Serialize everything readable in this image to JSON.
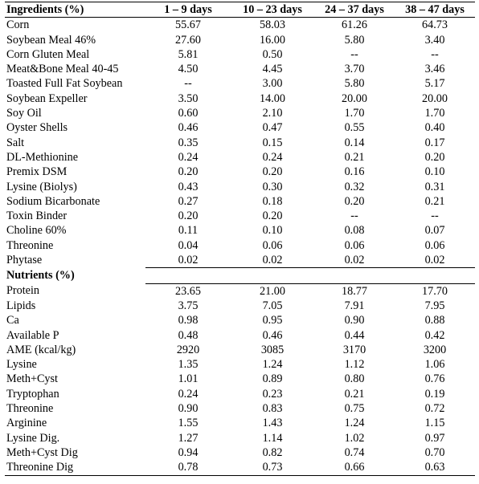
{
  "headers": [
    "Ingredients (%)",
    "1 – 9 days",
    "10 – 23 days",
    "24 – 37 days",
    "38 – 47 days"
  ],
  "ingredients": [
    [
      "Corn",
      "55.67",
      "58.03",
      "61.26",
      "64.73"
    ],
    [
      "Soybean Meal 46%",
      "27.60",
      "16.00",
      "5.80",
      "3.40"
    ],
    [
      "Corn Gluten Meal",
      "5.81",
      "0.50",
      "--",
      "--"
    ],
    [
      "Meat&Bone Meal 40-45",
      "4.50",
      "4.45",
      "3.70",
      "3.46"
    ],
    [
      "Toasted Full Fat Soybean",
      "--",
      "3.00",
      "5.80",
      "5.17"
    ],
    [
      "Soybean Expeller",
      "3.50",
      "14.00",
      "20.00",
      "20.00"
    ],
    [
      "Soy Oil",
      "0.60",
      "2.10",
      "1.70",
      "1.70"
    ],
    [
      "Oyster Shells",
      "0.46",
      "0.47",
      "0.55",
      "0.40"
    ],
    [
      "Salt",
      "0.35",
      "0.15",
      "0.14",
      "0.17"
    ],
    [
      "DL-Methionine",
      "0.24",
      "0.24",
      "0.21",
      "0.20"
    ],
    [
      "Premix DSM",
      "0.20",
      "0.20",
      "0.16",
      "0.10"
    ],
    [
      "Lysine (Biolys)",
      "0.43",
      "0.30",
      "0.32",
      "0.31"
    ],
    [
      "Sodium Bicarbonate",
      "0.27",
      "0.18",
      "0.20",
      "0.21"
    ],
    [
      "Toxin Binder",
      "0.20",
      "0.20",
      "--",
      "--"
    ],
    [
      "Choline 60%",
      "0.11",
      "0.10",
      "0.08",
      "0.07"
    ],
    [
      "Threonine",
      "0.04",
      "0.06",
      "0.06",
      "0.06"
    ],
    [
      "Phytase",
      "0.02",
      "0.02",
      "0.02",
      "0.02"
    ]
  ],
  "nutrients_title": "Nutrients (%)",
  "nutrients": [
    [
      "Protein",
      "23.65",
      "21.00",
      "18.77",
      "17.70"
    ],
    [
      "Lipids",
      "3.75",
      "7.05",
      "7.91",
      "7.95"
    ],
    [
      "Ca",
      "0.98",
      "0.95",
      "0.90",
      "0.88"
    ],
    [
      "Available P",
      "0.48",
      "0.46",
      "0.44",
      "0.42"
    ],
    [
      "AME (kcal/kg)",
      "2920",
      "3085",
      "3170",
      "3200"
    ],
    [
      "Lysine",
      "1.35",
      "1.24",
      "1.12",
      "1.06"
    ],
    [
      "Meth+Cyst",
      "1.01",
      "0.89",
      "0.80",
      "0.76"
    ],
    [
      "Tryptophan",
      "0.24",
      "0.23",
      "0.21",
      "0.19"
    ],
    [
      "Threonine",
      "0.90",
      "0.83",
      "0.75",
      "0.72"
    ],
    [
      "Arginine",
      "1.55",
      "1.43",
      "1.24",
      "1.15"
    ],
    [
      "Lysine Dig.",
      "1.27",
      "1.14",
      "1.02",
      "0.97"
    ],
    [
      "Meth+Cyst Dig",
      "0.94",
      "0.82",
      "0.74",
      "0.70"
    ],
    [
      "Threonine Dig",
      "0.78",
      "0.73",
      "0.66",
      "0.63"
    ]
  ]
}
